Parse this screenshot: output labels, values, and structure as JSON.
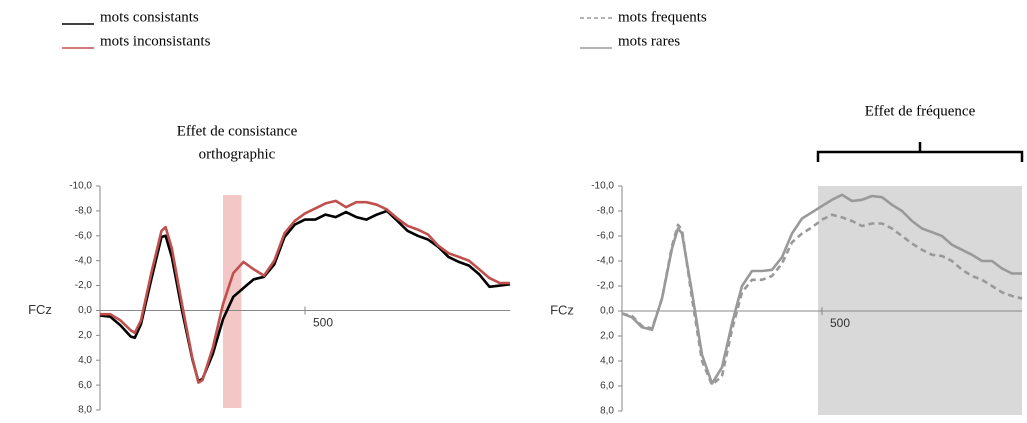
{
  "chart_data": [
    {
      "type": "line",
      "title": [
        "Effet de consistance",
        "orthographic"
      ],
      "y_label": "FCz",
      "x": [
        0,
        25,
        50,
        75,
        85,
        100,
        125,
        150,
        160,
        175,
        200,
        225,
        240,
        250,
        275,
        300,
        325,
        350,
        375,
        400,
        425,
        450,
        475,
        500,
        525,
        550,
        575,
        600,
        625,
        650,
        675,
        700,
        725,
        750,
        775,
        800,
        825,
        850,
        875,
        900,
        925,
        950,
        975,
        1000
      ],
      "series": [
        {
          "name": "mots consistants",
          "color": "#000000",
          "dashed": false,
          "values": [
            0.4,
            0.5,
            1.2,
            2.1,
            2.2,
            1.1,
            -2.5,
            -5.9,
            -6.0,
            -4.3,
            0,
            3.9,
            5.7,
            5.5,
            3.5,
            0.7,
            -1.1,
            -1.8,
            -2.5,
            -2.7,
            -3.7,
            -5.9,
            -6.9,
            -7.3,
            -7.3,
            -7.7,
            -7.5,
            -7.9,
            -7.5,
            -7.3,
            -7.7,
            -8.0,
            -7.2,
            -6.4,
            -6.0,
            -5.7,
            -5.1,
            -4.3,
            -3.9,
            -3.6,
            -2.9,
            -1.9,
            -2.0,
            -2.1
          ]
        },
        {
          "name": "mots inconsistants",
          "color": "#c0504d",
          "dashed": false,
          "values": [
            0.3,
            0.3,
            0.8,
            1.6,
            1.8,
            0.8,
            -3.0,
            -6.4,
            -6.7,
            -5.0,
            -0.5,
            3.8,
            5.8,
            5.6,
            3.0,
            -0.5,
            -3.0,
            -3.9,
            -3.3,
            -2.8,
            -4.0,
            -6.2,
            -7.2,
            -7.8,
            -8.2,
            -8.6,
            -8.8,
            -8.3,
            -8.7,
            -8.7,
            -8.5,
            -8.1,
            -7.4,
            -6.8,
            -6.5,
            -6.1,
            -5.2,
            -4.6,
            -4.3,
            -4.0,
            -3.3,
            -2.6,
            -2.2,
            -2.2
          ]
        }
      ],
      "xlim": [
        0,
        1000
      ],
      "xticks": [
        500
      ],
      "ylim": [
        8,
        -10
      ],
      "yticks": [
        {
          "value": -10,
          "label": "-10,0"
        },
        {
          "value": -8,
          "label": "-8,0"
        },
        {
          "value": -6,
          "label": "-6,0"
        },
        {
          "value": -4,
          "label": "-4,0"
        },
        {
          "value": -2,
          "label": "-2,0"
        },
        {
          "value": 0,
          "label": "0,0"
        },
        {
          "value": 2,
          "label": "2,0"
        },
        {
          "value": 4,
          "label": "4,0"
        },
        {
          "value": 6,
          "label": "6,0"
        },
        {
          "value": 8,
          "label": "8,0"
        }
      ],
      "highlight_window": [
        300,
        345
      ],
      "highlight_color": "#f4c7c7"
    },
    {
      "type": "line",
      "annotation": "Effet de fréquence",
      "y_label": "FCz",
      "x": [
        0,
        25,
        50,
        75,
        100,
        125,
        140,
        150,
        175,
        200,
        225,
        250,
        275,
        300,
        325,
        350,
        375,
        400,
        425,
        450,
        475,
        500,
        525,
        550,
        575,
        600,
        625,
        650,
        675,
        700,
        725,
        750,
        775,
        800,
        825,
        850,
        875,
        900,
        925,
        950,
        975,
        1000
      ],
      "series": [
        {
          "name": "mots frequents",
          "color": "#999999",
          "dashed": true,
          "values": [
            0.2,
            0.4,
            1.2,
            1.4,
            -1,
            -5.2,
            -6.9,
            -6.5,
            -1,
            4,
            5.9,
            5.2,
            1.5,
            -1.5,
            -2.5,
            -2.5,
            -2.8,
            -3.8,
            -5.5,
            -6.2,
            -6.7,
            -7.3,
            -7.7,
            -7.5,
            -7.2,
            -6.8,
            -7.0,
            -7.0,
            -6.6,
            -6.0,
            -5.4,
            -4.9,
            -4.5,
            -4.4,
            -4.0,
            -3.3,
            -2.8,
            -2.5,
            -2.0,
            -1.5,
            -1.2,
            -1.0
          ]
        },
        {
          "name": "mots rares",
          "color": "#999999",
          "dashed": false,
          "values": [
            0.2,
            0.5,
            1.3,
            1.5,
            -1,
            -5,
            -6.6,
            -6.2,
            -1.5,
            3.5,
            5.8,
            4.5,
            1,
            -2,
            -3.2,
            -3.2,
            -3.3,
            -4.3,
            -6.2,
            -7.4,
            -7.9,
            -8.4,
            -8.9,
            -9.3,
            -8.8,
            -8.9,
            -9.2,
            -9.1,
            -8.5,
            -8.0,
            -7.2,
            -6.6,
            -6.3,
            -6.0,
            -5.3,
            -4.9,
            -4.5,
            -4.0,
            -4.0,
            -3.4,
            -3.0,
            -3.0
          ]
        }
      ],
      "xlim": [
        0,
        1000
      ],
      "xticks": [
        500
      ],
      "ylim": [
        8,
        -10
      ],
      "yticks": [
        {
          "value": -10,
          "label": "-10,0"
        },
        {
          "value": -8,
          "label": "-8,0"
        },
        {
          "value": -6,
          "label": "-6,0"
        },
        {
          "value": -4,
          "label": "-4,0"
        },
        {
          "value": -2,
          "label": "-2,0"
        },
        {
          "value": 0,
          "label": "0,0"
        },
        {
          "value": 2,
          "label": "2,0"
        },
        {
          "value": 4,
          "label": "4,0"
        },
        {
          "value": 6,
          "label": "6,0"
        },
        {
          "value": 8,
          "label": "8,0"
        }
      ],
      "highlight_window": [
        490,
        1000
      ],
      "highlight_color": "#d9d9d9"
    }
  ]
}
